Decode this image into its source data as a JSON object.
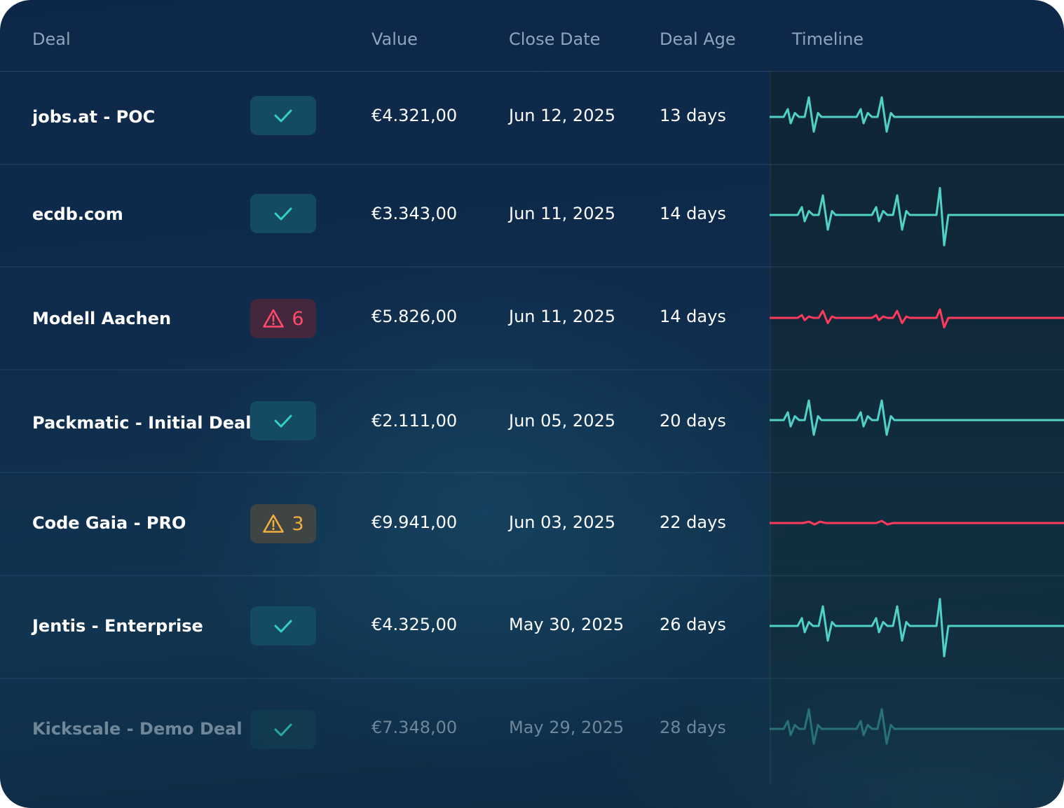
{
  "table": {
    "headers": {
      "deal": "Deal",
      "value": "Value",
      "close_date": "Close Date",
      "deal_age": "Deal Age",
      "timeline": "Timeline"
    },
    "rows": [
      {
        "deal": "jobs.at - POC",
        "status": "ok",
        "status_icon": "check-icon",
        "count": "",
        "value": "€4.321,00",
        "close_date": "Jun 12, 2025",
        "deal_age": "13 days",
        "timeline_color": "#4fd1c5",
        "timeline_pattern": "small"
      },
      {
        "deal": "ecdb.com",
        "status": "ok",
        "status_icon": "check-icon",
        "count": "",
        "value": "€3.343,00",
        "close_date": "Jun 11, 2025",
        "deal_age": "14 days",
        "timeline_color": "#4fd1c5",
        "timeline_pattern": "large"
      },
      {
        "deal": "Modell Aachen",
        "status": "danger",
        "status_icon": "warning-icon",
        "count": "6",
        "value": "€5.826,00",
        "close_date": "Jun 11, 2025",
        "deal_age": "14 days",
        "timeline_color": "#ff3b5c",
        "timeline_pattern": "weak"
      },
      {
        "deal": "Packmatic - Initial Deal",
        "status": "ok",
        "status_icon": "check-icon",
        "count": "",
        "value": "€2.111,00",
        "close_date": "Jun 05, 2025",
        "deal_age": "20 days",
        "timeline_color": "#4fd1c5",
        "timeline_pattern": "small"
      },
      {
        "deal": "Code Gaia - PRO",
        "status": "warn",
        "status_icon": "warning-icon",
        "count": "3",
        "value": "€9.941,00",
        "close_date": "Jun 03, 2025",
        "deal_age": "22 days",
        "timeline_color": "#ff3b5c",
        "timeline_pattern": "flat"
      },
      {
        "deal": "Jentis - Enterprise",
        "status": "ok",
        "status_icon": "check-icon",
        "count": "",
        "value": "€4.325,00",
        "close_date": "May 30, 2025",
        "deal_age": "26 days",
        "timeline_color": "#4fd1c5",
        "timeline_pattern": "large"
      },
      {
        "deal": "Kickscale - Demo Deal",
        "status": "ok",
        "status_icon": "check-icon",
        "count": "",
        "value": "€7.348,00",
        "close_date": "May 29, 2025",
        "deal_age": "28 days",
        "timeline_color": "#3aa89e",
        "timeline_pattern": "small"
      }
    ]
  },
  "colors": {
    "ok_check": "#34d1c0",
    "danger": "#ff4a6a",
    "warn": "#f2ad3c"
  }
}
